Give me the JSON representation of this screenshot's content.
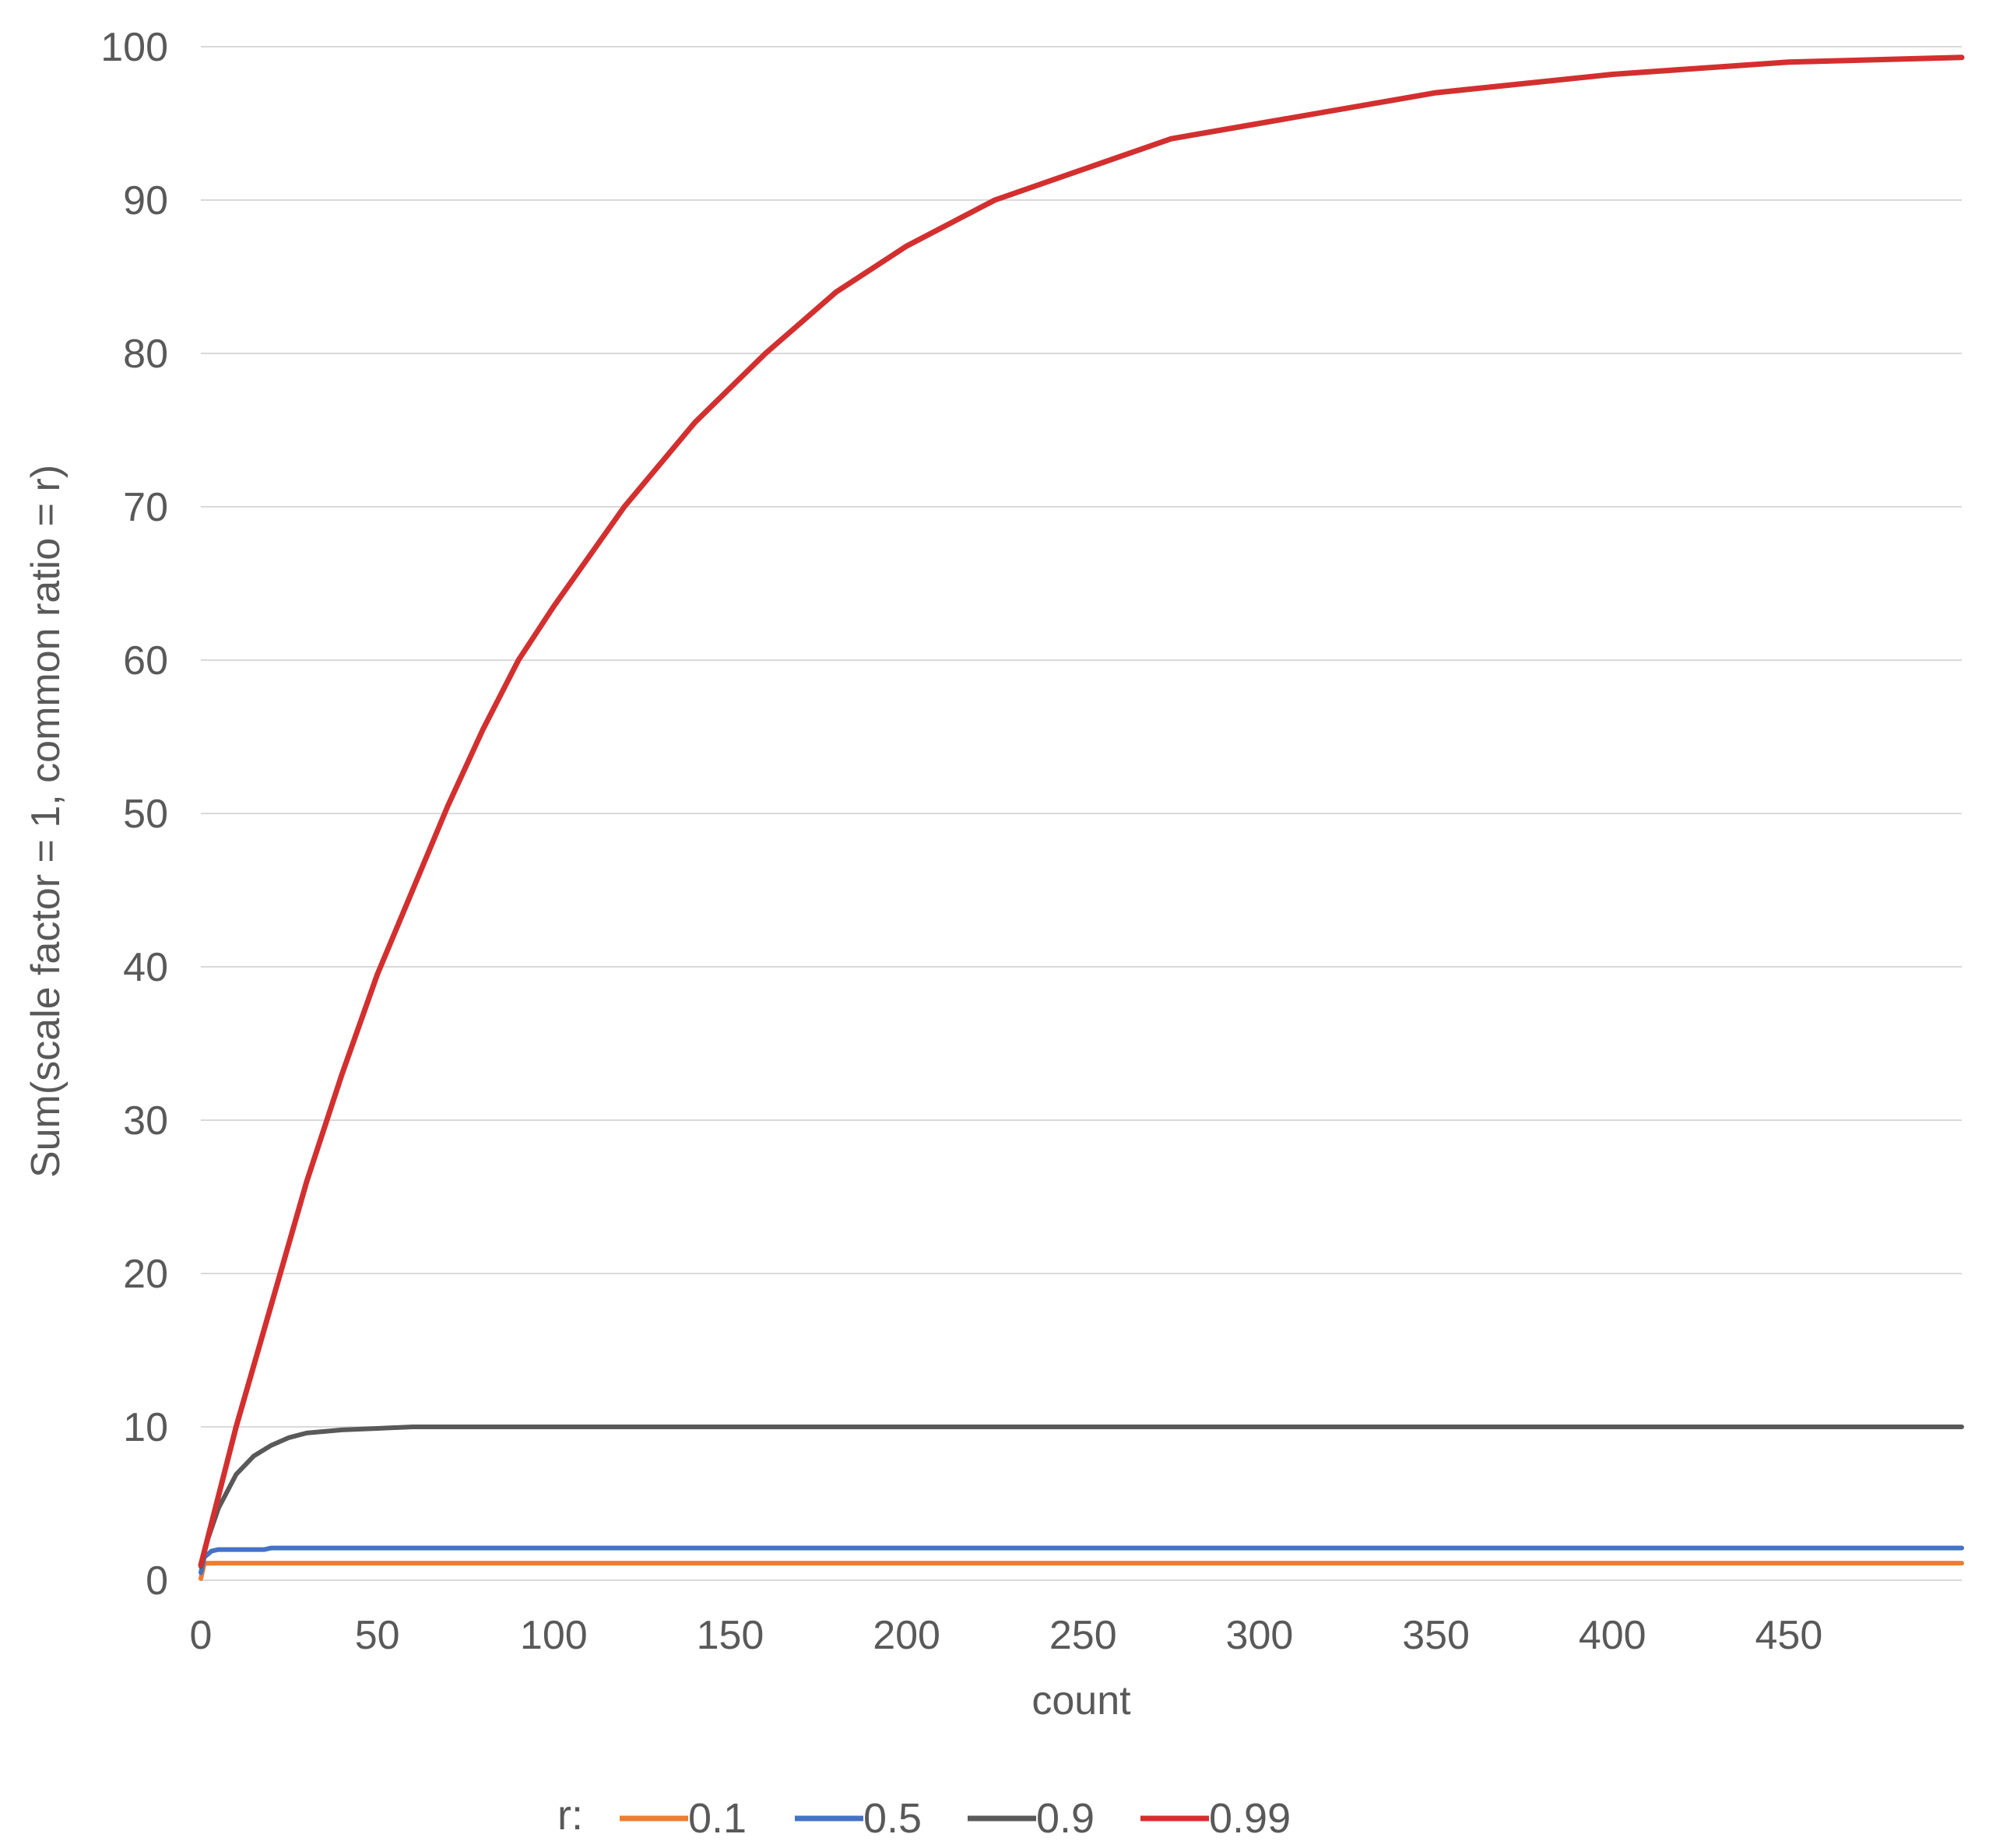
{
  "chart_data": {
    "type": "line",
    "xlabel": "count",
    "ylabel": "Sum(scale factor = 1, common ratio = r)",
    "xlim": [
      0,
      499
    ],
    "ylim": [
      0,
      100
    ],
    "x_ticks": [
      0,
      50,
      100,
      150,
      200,
      250,
      300,
      350,
      400,
      450
    ],
    "y_ticks": [
      0,
      10,
      20,
      30,
      40,
      50,
      60,
      70,
      80,
      90,
      100
    ],
    "grid": "horizontal",
    "legend": {
      "title": "r:",
      "position": "bottom"
    },
    "series": [
      {
        "name": "0.1",
        "color": "#ed7d31",
        "x": [
          0,
          1,
          5,
          50,
          100,
          200,
          300,
          400,
          499
        ],
        "values": [
          0.1,
          1.1,
          1.11,
          1.11,
          1.11,
          1.11,
          1.11,
          1.11,
          1.11
        ]
      },
      {
        "name": "0.5",
        "color": "#4472c4",
        "x": [
          0,
          1,
          3,
          5,
          10,
          18,
          20,
          50,
          100,
          200,
          300,
          400,
          499
        ],
        "values": [
          0.5,
          1.5,
          1.9,
          2.0,
          2.0,
          2.0,
          2.1,
          2.1,
          2.1,
          2.1,
          2.1,
          2.1,
          2.1
        ]
      },
      {
        "name": "0.9",
        "color": "#595959",
        "x": [
          0,
          2,
          5,
          10,
          15,
          20,
          25,
          30,
          40,
          50,
          60,
          100,
          200,
          300,
          400,
          499
        ],
        "values": [
          0.9,
          2.7,
          4.7,
          6.9,
          8.1,
          8.8,
          9.3,
          9.6,
          9.8,
          9.9,
          10.0,
          10.0,
          10.0,
          10.0,
          10.0,
          10.0
        ]
      },
      {
        "name": "0.99",
        "color": "#d32f2f",
        "x": [
          0,
          10,
          20,
          30,
          40,
          50,
          60,
          70,
          80,
          90,
          100,
          120,
          140,
          160,
          180,
          200,
          225,
          250,
          275,
          300,
          350,
          400,
          450,
          499
        ],
        "values": [
          0.99,
          10,
          18,
          26,
          33,
          39.5,
          45,
          50.5,
          55.5,
          60,
          63.5,
          70,
          75.5,
          80,
          84,
          87,
          90,
          92,
          94,
          95,
          97,
          98.2,
          99,
          99.3
        ]
      }
    ]
  }
}
